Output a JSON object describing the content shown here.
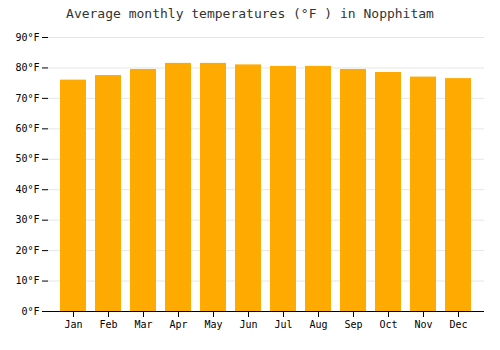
{
  "chart_data": {
    "type": "bar",
    "title": "Average monthly temperatures (°F ) in Nopphitam",
    "categories": [
      "Jan",
      "Feb",
      "Mar",
      "Apr",
      "May",
      "Jun",
      "Jul",
      "Aug",
      "Sep",
      "Oct",
      "Nov",
      "Dec"
    ],
    "values": [
      76.0,
      77.5,
      79.5,
      81.5,
      81.5,
      81.0,
      80.5,
      80.5,
      79.5,
      78.5,
      77.0,
      76.5
    ],
    "color": "#FFAA00",
    "ylim": [
      0,
      90
    ],
    "yticks": [
      {
        "value": 0,
        "label": "0°F"
      },
      {
        "value": 10,
        "label": "10°F"
      },
      {
        "value": 20,
        "label": "20°F"
      },
      {
        "value": 30,
        "label": "30°F"
      },
      {
        "value": 40,
        "label": "40°F"
      },
      {
        "value": 50,
        "label": "50°F"
      },
      {
        "value": 60,
        "label": "60°F"
      },
      {
        "value": 70,
        "label": "70°F"
      },
      {
        "value": 80,
        "label": "80°F"
      },
      {
        "value": 90,
        "label": "90°F"
      }
    ],
    "grid": true
  }
}
